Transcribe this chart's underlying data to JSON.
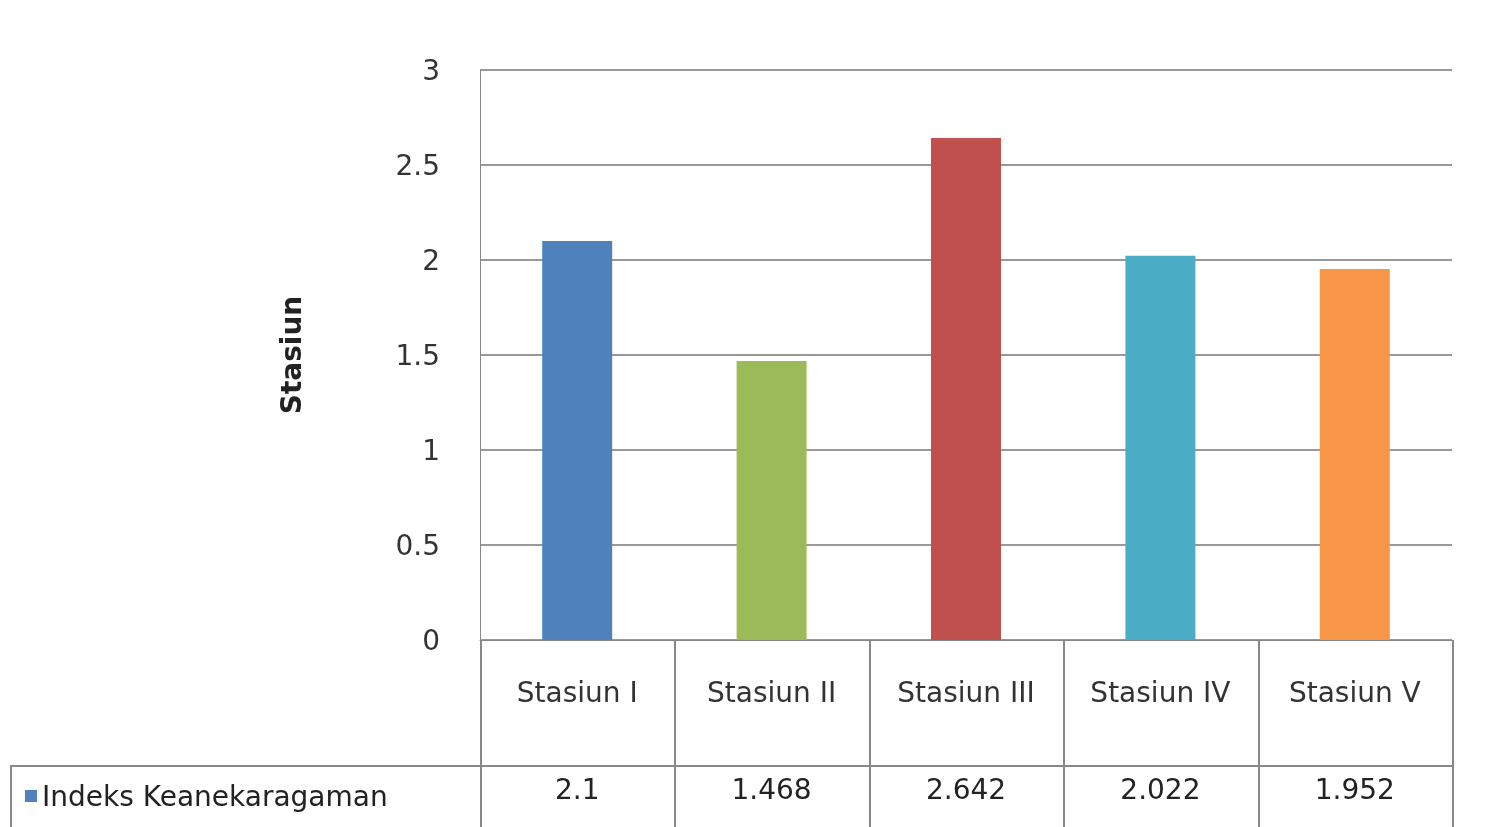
{
  "chart_data": {
    "type": "bar",
    "ylabel": "Stasiun",
    "categories": [
      "Stasiun I",
      "Stasiun II",
      "Stasiun III",
      "Stasiun IV",
      "Stasiun V"
    ],
    "series": [
      {
        "name": "Indeks Keanekaragaman",
        "values": [
          2.1,
          1.468,
          2.642,
          2.022,
          1.952
        ],
        "colors": [
          "#4f81bd",
          "#9bbb59",
          "#c0504d",
          "#4bacc6",
          "#f79646"
        ]
      }
    ],
    "ylim": [
      0,
      3
    ],
    "yticks": [
      0,
      0.5,
      1,
      1.5,
      2,
      2.5,
      3
    ],
    "grid": "y",
    "legend": "bottom left",
    "data_labels": true
  }
}
